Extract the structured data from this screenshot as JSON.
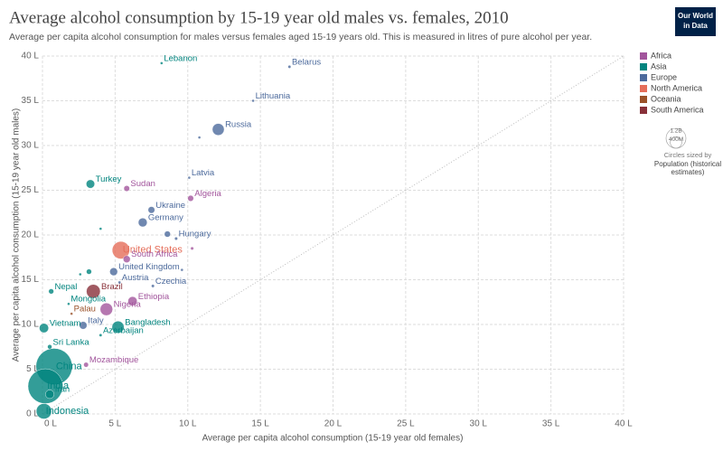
{
  "header": {
    "title": "Average alcohol consumption by 15-19 year old males vs. females, 2010",
    "subtitle": "Average per capita alcohol consumption for males versus females aged 15-19 years old. This is measured in litres of pure alcohol per year.",
    "logo_lines": [
      "Our World",
      "in Data"
    ]
  },
  "chart_data": {
    "type": "scatter",
    "x_label": "Average per capita alcohol consumption (15-19 year old females)",
    "y_label": "Average per capita alcohol consumption (15-19 year old males)",
    "xlim": [
      0,
      40
    ],
    "ylim": [
      0,
      40
    ],
    "grid": true,
    "xticks": [
      {
        "value": 0,
        "label": "0 L"
      },
      {
        "value": 5,
        "label": "5 L"
      },
      {
        "value": 10,
        "label": "10 L"
      },
      {
        "value": 15,
        "label": "15 L"
      },
      {
        "value": 20,
        "label": "20 L"
      },
      {
        "value": 25,
        "label": "25 L"
      },
      {
        "value": 30,
        "label": "30 L"
      },
      {
        "value": 35,
        "label": "35 L"
      },
      {
        "value": 40,
        "label": "40 L"
      }
    ],
    "yticks": [
      {
        "value": 0,
        "label": "0 L"
      },
      {
        "value": 5,
        "label": "5 L"
      },
      {
        "value": 10,
        "label": "10 L"
      },
      {
        "value": 15,
        "label": "15 L"
      },
      {
        "value": 20,
        "label": "20 L"
      },
      {
        "value": 25,
        "label": "25 L"
      },
      {
        "value": 30,
        "label": "30 L"
      },
      {
        "value": 35,
        "label": "35 L"
      },
      {
        "value": 40,
        "label": "40 L"
      }
    ],
    "size_legend": {
      "title": "Circles sized by",
      "measure": "Population (historical estimates)",
      "sizes": [
        {
          "value": 1200000000,
          "label": "1.2B"
        },
        {
          "value": 400000000,
          "label": "400M"
        }
      ]
    },
    "series": [
      {
        "name": "Africa",
        "color": "#a2559c",
        "x": [
          5.8,
          10.2,
          5.8,
          6.2,
          4.4,
          3.0,
          10.3
        ],
        "values": [
          25.2,
          24.1,
          17.3,
          12.6,
          11.7,
          5.5,
          18.5
        ],
        "sizes": [
          34000000,
          36000000,
          51000000,
          87000000,
          160000000,
          24000000,
          10000000
        ],
        "labels": [
          "Sudan",
          "Algeria",
          "South Africa",
          "Ethiopia",
          "Nigeria",
          "Mozambique",
          null
        ]
      },
      {
        "name": "Asia",
        "color": "#00847e",
        "x": [
          8.2,
          3.3,
          0.6,
          1.8,
          0.1,
          0.5,
          5.2,
          4.0,
          0.8,
          0.2,
          0.5,
          0.1,
          2.6,
          3.2,
          4.0
        ],
        "values": [
          39.2,
          25.7,
          13.7,
          12.3,
          9.6,
          7.5,
          9.7,
          8.8,
          5.3,
          3.1,
          2.2,
          0.3,
          15.6,
          15.9,
          20.7
        ],
        "sizes": [
          4900000,
          73000000,
          27000000,
          2700000,
          88000000,
          20000000,
          150000000,
          9000000,
          1340000000,
          1230000000,
          75000000,
          240000000,
          5000000,
          28000000,
          3000000
        ],
        "labels": [
          "Lebanon",
          "Turkey",
          "Nepal",
          "Mongolia",
          "Vietnam",
          "Sri Lanka",
          "Bangladesh",
          "Azerbaijan",
          "China",
          "India",
          "Iran",
          "Indonesia",
          null,
          null,
          null
        ]
      },
      {
        "name": "Europe",
        "color": "#4c6a9c",
        "x": [
          17.0,
          14.5,
          12.1,
          10.1,
          7.5,
          6.9,
          9.2,
          4.9,
          5.3,
          7.6,
          2.8,
          10.8,
          8.6,
          9.6
        ],
        "values": [
          38.8,
          35.0,
          31.8,
          26.4,
          22.8,
          21.4,
          19.6,
          15.9,
          14.7,
          14.3,
          9.9,
          30.9,
          20.1,
          16.1
        ],
        "sizes": [
          9500000,
          3100000,
          143000000,
          2100000,
          46000000,
          80000000,
          10000000,
          63000000,
          8400000,
          10000000,
          60000000,
          5000000,
          38000000,
          4000000
        ],
        "labels": [
          "Belarus",
          "Lithuania",
          "Russia",
          "Latvia",
          "Ukraine",
          "Germany",
          "Hungary",
          "United Kingdom",
          "Austria",
          "Czechia",
          "Italy",
          null,
          null,
          null
        ]
      },
      {
        "name": "North America",
        "color": "#e56e5a",
        "x": [
          5.4
        ],
        "values": [
          18.3
        ],
        "sizes": [
          310000000
        ],
        "labels": [
          "United States"
        ]
      },
      {
        "name": "Oceania",
        "color": "#9a5129",
        "x": [
          2.0
        ],
        "values": [
          11.2
        ],
        "sizes": [
          20000
        ],
        "labels": [
          "Palau"
        ]
      },
      {
        "name": "South America",
        "color": "#883039",
        "x": [
          3.5
        ],
        "values": [
          13.7
        ],
        "sizes": [
          196000000
        ],
        "labels": [
          "Brazil"
        ]
      }
    ]
  }
}
